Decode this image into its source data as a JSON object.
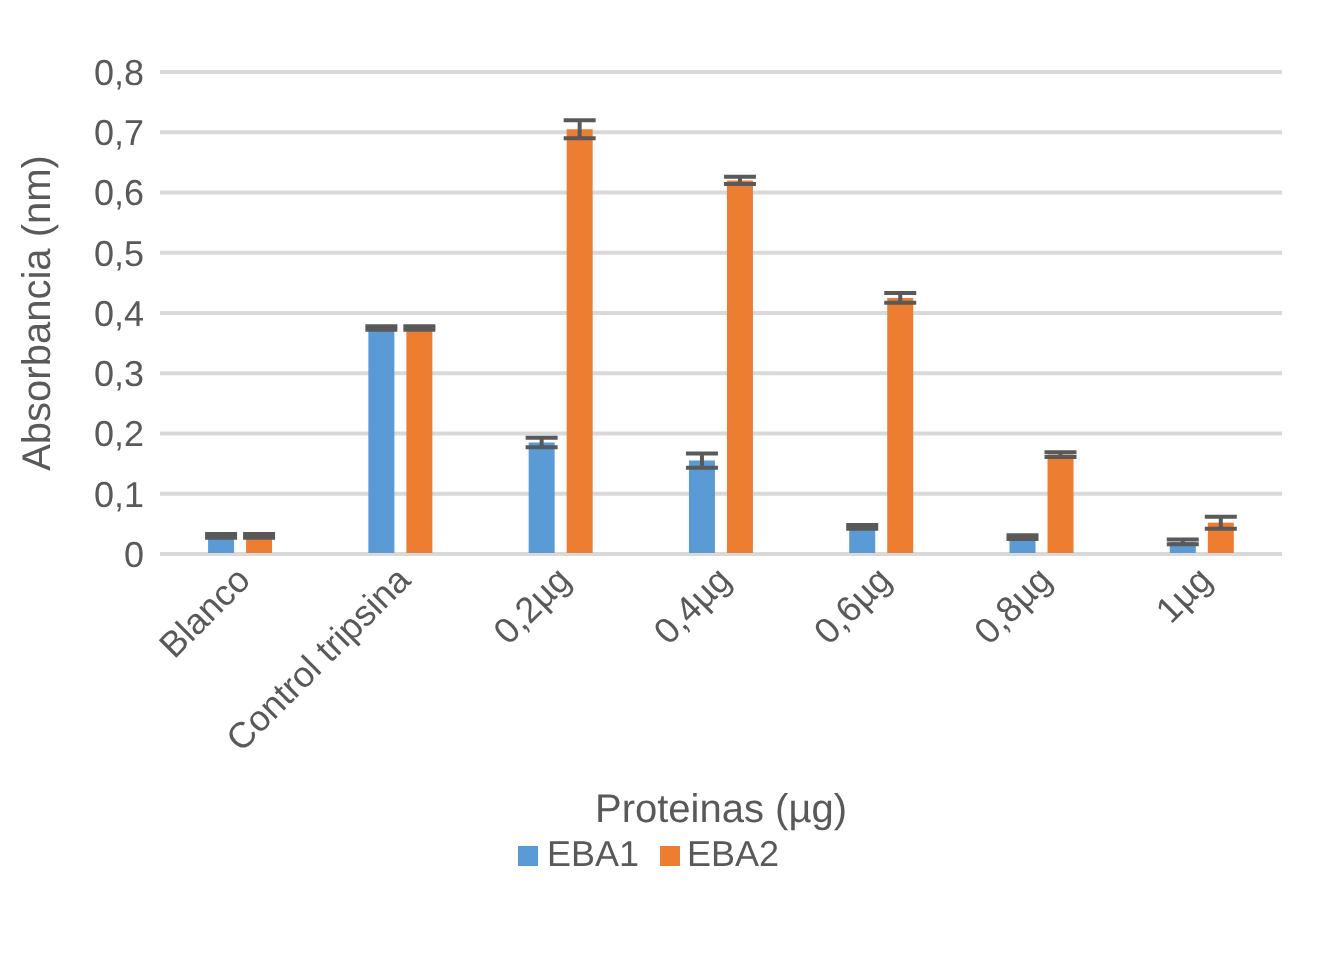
{
  "chart_data": {
    "type": "bar",
    "xlabel": "Proteinas (µg)",
    "ylabel": "Absorbancia (nm)",
    "categories": [
      "Blanco",
      "Control tripsina",
      "0,2µg",
      "0,4µg",
      "0,6µg",
      "0,8µg",
      "1µg"
    ],
    "series": [
      {
        "name": "EBA1",
        "color": "#5b9bd5",
        "values": [
          0.03,
          0.375,
          0.185,
          0.155,
          0.045,
          0.028,
          0.02
        ],
        "errors": [
          0.003,
          0.003,
          0.008,
          0.012,
          0.003,
          0.003,
          0.004
        ]
      },
      {
        "name": "EBA2",
        "color": "#ed7d31",
        "values": [
          0.03,
          0.375,
          0.705,
          0.62,
          0.425,
          0.165,
          0.052
        ],
        "errors": [
          0.003,
          0.003,
          0.015,
          0.006,
          0.008,
          0.004,
          0.01
        ]
      }
    ],
    "ylim": [
      0,
      0.8
    ],
    "yticks": [
      {
        "value": 0,
        "label": "0"
      },
      {
        "value": 0.1,
        "label": "0,1"
      },
      {
        "value": 0.2,
        "label": "0,2"
      },
      {
        "value": 0.3,
        "label": "0,3"
      },
      {
        "value": 0.4,
        "label": "0,4"
      },
      {
        "value": 0.5,
        "label": "0,5"
      },
      {
        "value": 0.6,
        "label": "0,6"
      },
      {
        "value": 0.7,
        "label": "0,7"
      },
      {
        "value": 0.8,
        "label": "0,8"
      }
    ],
    "grid": "y",
    "legend": "bottom"
  }
}
